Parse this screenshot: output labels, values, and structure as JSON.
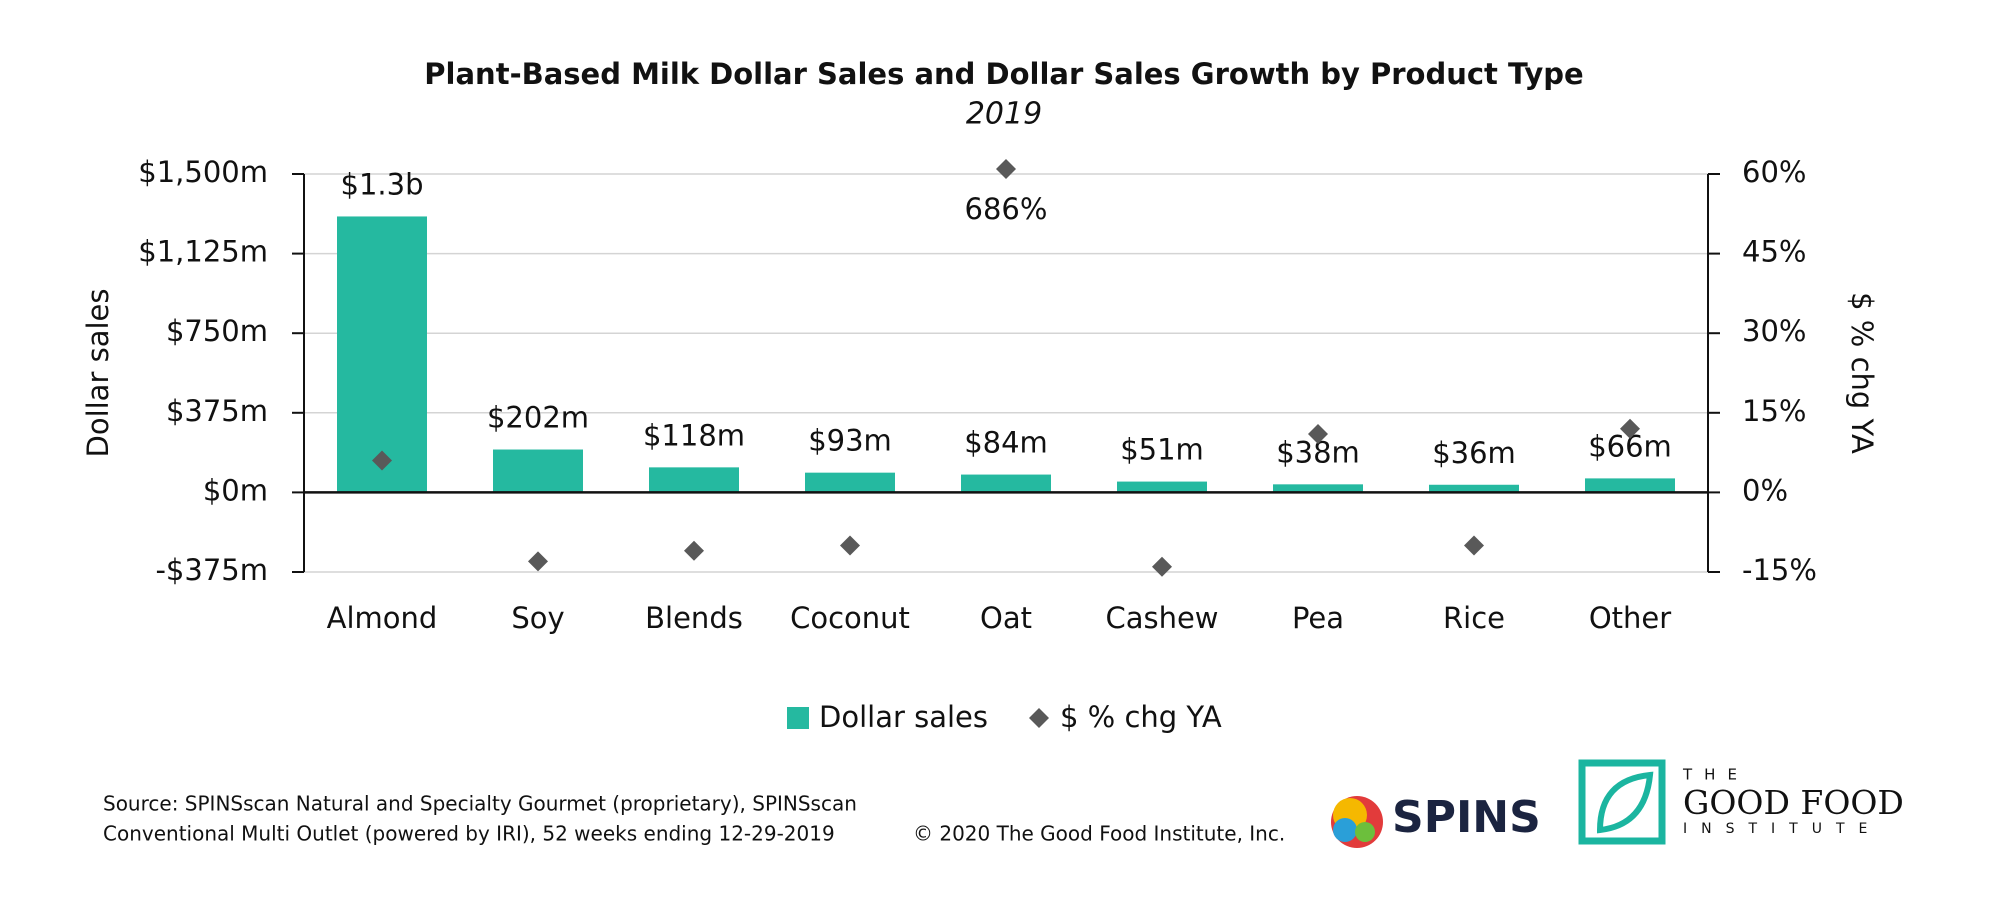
{
  "chart_data": {
    "type": "bar",
    "title": "Plant-Based Milk Dollar Sales and Dollar Sales Growth by Product Type",
    "subtitle": "2019",
    "y_label": "Dollar sales",
    "y2_label": "$ % chg YA",
    "categories": [
      "Almond",
      "Soy",
      "Blends",
      "Coconut",
      "Oat",
      "Cashew",
      "Pea",
      "Rice",
      "Other"
    ],
    "series": [
      {
        "name": "Dollar sales",
        "type": "bar",
        "color": "#25b9a0",
        "values": [
          1300,
          202,
          118,
          93,
          84,
          51,
          38,
          36,
          66
        ],
        "value_labels": [
          "$1.3b",
          "$202m",
          "$118m",
          "$93m",
          "$84m",
          "$51m",
          "$38m",
          "$36m",
          "$66m"
        ]
      },
      {
        "name": "$ % chg YA",
        "type": "scatter",
        "axis": "y2",
        "color": "#595959",
        "values": [
          6,
          -13,
          -11,
          -10,
          686,
          -14,
          11,
          -10,
          12
        ],
        "value_labels": [
          null,
          null,
          null,
          null,
          "686%",
          null,
          null,
          null,
          null
        ]
      }
    ],
    "ylim": [
      -375,
      1500
    ],
    "yticks": [
      {
        "value": -375,
        "label": "-$375m"
      },
      {
        "value": 0,
        "label": "$0m"
      },
      {
        "value": 375,
        "label": "$375m"
      },
      {
        "value": 750,
        "label": "$750m"
      },
      {
        "value": 1125,
        "label": "$1,125m"
      },
      {
        "value": 1500,
        "label": "$1,500m"
      }
    ],
    "y2lim": [
      -15,
      60
    ],
    "y2ticks": [
      {
        "value": -15,
        "label": "-15%"
      },
      {
        "value": 0,
        "label": "0%"
      },
      {
        "value": 15,
        "label": "15%"
      },
      {
        "value": 30,
        "label": "30%"
      },
      {
        "value": 45,
        "label": "45%"
      },
      {
        "value": 60,
        "label": "60%"
      }
    ],
    "grid": true,
    "legend": "bottom"
  },
  "footer": {
    "source": [
      "Source: SPINSscan Natural and Specialty Gourmet (proprietary), SPINSscan",
      "Conventional Multi Outlet (powered by IRI), 52 weeks ending 12-29-2019"
    ],
    "copyright": "© 2020 The Good Food Institute, Inc.",
    "logos": [
      "SPINS",
      "THE",
      "GOOD FOOD",
      "INSTITUTE"
    ]
  }
}
